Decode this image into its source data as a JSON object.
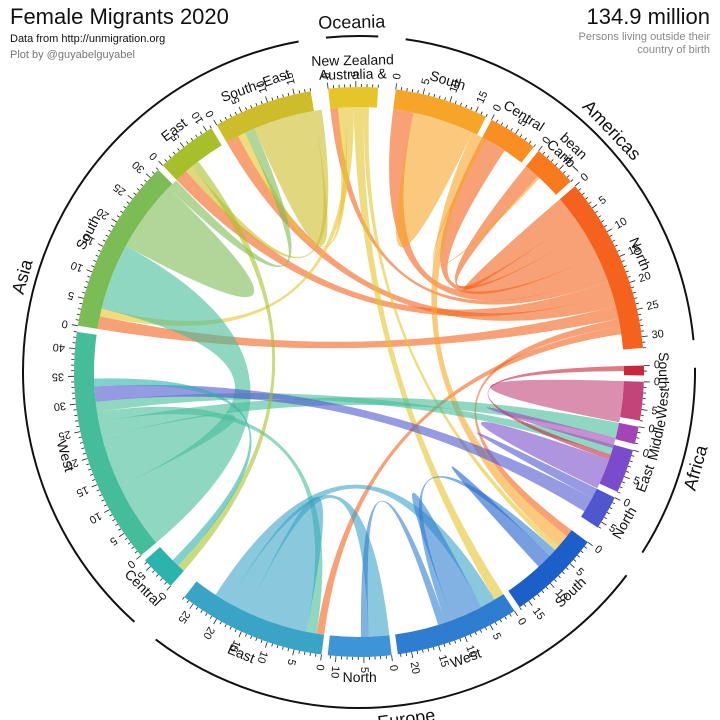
{
  "header": {
    "title": "Female Migrants 2020",
    "source": "Data from http://unmigration.org",
    "credit": "Plot by @guyabelguyabel",
    "total": "134.9 million",
    "total_caption": "Persons living outside their country of birth"
  },
  "chart_data": {
    "type": "chord",
    "title": "Female Migrants 2020",
    "unit": "million",
    "total": 134.9,
    "continents": [
      {
        "name": "Africa"
      },
      {
        "name": "Europe"
      },
      {
        "name": "Asia"
      },
      {
        "name": "Oceania"
      },
      {
        "name": "Americas"
      }
    ],
    "regions": [
      {
        "name": "South",
        "label": "South",
        "continent": "Africa",
        "total": 1.8,
        "ticks": [
          0
        ],
        "color": "#c8263b"
      },
      {
        "name": "West",
        "label": "West",
        "continent": "Africa",
        "total": 7.0,
        "ticks": [
          0,
          5
        ],
        "color": "#c2457a"
      },
      {
        "name": "Middle",
        "label": "Middle",
        "continent": "Africa",
        "total": 3.2,
        "ticks": [
          0
        ],
        "color": "#a344b9"
      },
      {
        "name": "East",
        "label": "East",
        "continent": "Africa",
        "total": 8.0,
        "ticks": [
          0,
          5
        ],
        "color": "#7a4ccc"
      },
      {
        "name": "North",
        "label": "North",
        "continent": "Africa",
        "total": 6.2,
        "ticks": [
          0,
          5
        ],
        "color": "#4f57cf"
      },
      {
        "name": "South",
        "label": "South",
        "continent": "Europe",
        "total": 17.0,
        "ticks": [
          0,
          5,
          10,
          15
        ],
        "color": "#1d5fc9"
      },
      {
        "name": "West",
        "label": "West",
        "continent": "Europe",
        "total": 22.5,
        "ticks": [
          0,
          5,
          10,
          15,
          20
        ],
        "color": "#2f7dd0"
      },
      {
        "name": "North",
        "label": "North",
        "continent": "Europe",
        "total": 11.5,
        "ticks": [
          0,
          5,
          10
        ],
        "color": "#3d94d6"
      },
      {
        "name": "East",
        "label": "East",
        "continent": "Europe",
        "total": 27.0,
        "ticks": [
          0,
          5,
          10,
          15,
          20,
          25
        ],
        "color": "#3aa4c6"
      },
      {
        "name": "Central",
        "label": "Central",
        "continent": "Asia",
        "total": 6.5,
        "ticks": [
          0,
          5
        ],
        "color": "#2bb3ae"
      },
      {
        "name": "West",
        "label": "West",
        "continent": "Asia",
        "total": 43.0,
        "ticks": [
          0,
          5,
          10,
          15,
          20,
          25,
          30,
          35,
          40
        ],
        "color": "#46bd9a"
      },
      {
        "name": "South",
        "label": "South",
        "continent": "Asia",
        "total": 32.0,
        "ticks": [
          0,
          5,
          10,
          15,
          20,
          25,
          30
        ],
        "color": "#7cbc55"
      },
      {
        "name": "East",
        "label": "East",
        "continent": "Asia",
        "total": 11.0,
        "ticks": [
          0,
          5,
          10
        ],
        "color": "#a8bf2c"
      },
      {
        "name": "South-East",
        "label": "South–East",
        "continent": "Asia",
        "total": 18.0,
        "ticks": [
          0,
          5,
          10,
          15
        ],
        "color": "#cdbd2a"
      },
      {
        "name": "Australia & New Zealand",
        "label": "Australia & New Zealand",
        "continent": "Oceania",
        "total": 9.0,
        "ticks": [
          0,
          5
        ],
        "color": "#e6c52b"
      },
      {
        "name": "South",
        "label": "South",
        "continent": "Americas",
        "total": 17.0,
        "ticks": [
          0,
          5,
          10,
          15
        ],
        "color": "#f6a528"
      },
      {
        "name": "Central",
        "label": "Central",
        "continent": "Americas",
        "total": 9.0,
        "ticks": [
          0,
          5
        ],
        "color": "#f98f22"
      },
      {
        "name": "Caribbean",
        "label": "Carib–bean",
        "continent": "Americas",
        "total": 8.0,
        "ticks": [
          0,
          5
        ],
        "color": "#f97a1e"
      },
      {
        "name": "North",
        "label": "North",
        "continent": "Americas",
        "total": 32.0,
        "ticks": [
          0,
          5,
          10,
          15,
          20,
          25,
          30
        ],
        "color": "#f4621d"
      }
    ],
    "flows": [
      {
        "from": 18,
        "to": 18,
        "value": 2.5
      },
      {
        "from": 18,
        "to": 17,
        "value": 3.0
      },
      {
        "from": 18,
        "to": 16,
        "value": 5.0
      },
      {
        "from": 18,
        "to": 15,
        "value": 4.0
      },
      {
        "from": 18,
        "to": 14,
        "value": 1.5
      },
      {
        "from": 18,
        "to": 12,
        "value": 2.5
      },
      {
        "from": 18,
        "to": 13,
        "value": 2.5
      },
      {
        "from": 18,
        "to": 11,
        "value": 2.5
      },
      {
        "from": 18,
        "to": 5,
        "value": 1.5
      },
      {
        "from": 18,
        "to": 8,
        "value": 1.5
      },
      {
        "from": 15,
        "to": 15,
        "value": 6.0
      },
      {
        "from": 15,
        "to": 5,
        "value": 2.5
      },
      {
        "from": 15,
        "to": 17,
        "value": 0.5
      },
      {
        "from": 14,
        "to": 13,
        "value": 1.5
      },
      {
        "from": 14,
        "to": 11,
        "value": 1.5
      },
      {
        "from": 14,
        "to": 6,
        "value": 2.0
      },
      {
        "from": 14,
        "to": 5,
        "value": 1.0
      },
      {
        "from": 10,
        "to": 11,
        "value": 13.0
      },
      {
        "from": 10,
        "to": 10,
        "value": 5.0
      },
      {
        "from": 10,
        "to": 2,
        "value": 3.0
      },
      {
        "from": 10,
        "to": 8,
        "value": 2.0
      },
      {
        "from": 10,
        "to": 3,
        "value": 2.0
      },
      {
        "from": 11,
        "to": 11,
        "value": 7.0
      },
      {
        "from": 11,
        "to": 13,
        "value": 2.0
      },
      {
        "from": 13,
        "to": 13,
        "value": 6.0
      },
      {
        "from": 13,
        "to": 12,
        "value": 1.5
      },
      {
        "from": 8,
        "to": 8,
        "value": 6.0
      },
      {
        "from": 8,
        "to": 7,
        "value": 4.0
      },
      {
        "from": 8,
        "to": 6,
        "value": 3.0
      },
      {
        "from": 6,
        "to": 6,
        "value": 3.0
      },
      {
        "from": 6,
        "to": 5,
        "value": 1.5
      },
      {
        "from": 6,
        "to": 7,
        "value": 1.5
      },
      {
        "from": 5,
        "to": 5,
        "value": 1.5
      },
      {
        "from": 1,
        "to": 1,
        "value": 4.0
      },
      {
        "from": 0,
        "to": 3,
        "value": 1.0
      },
      {
        "from": 3,
        "to": 3,
        "value": 3.0
      },
      {
        "from": 4,
        "to": 4,
        "value": 1.0
      },
      {
        "from": 4,
        "to": 10,
        "value": 3.0
      },
      {
        "from": 2,
        "to": 2,
        "value": 1.0
      },
      {
        "from": 12,
        "to": 9,
        "value": 1.5
      },
      {
        "from": 9,
        "to": 10,
        "value": 1.5
      }
    ]
  }
}
